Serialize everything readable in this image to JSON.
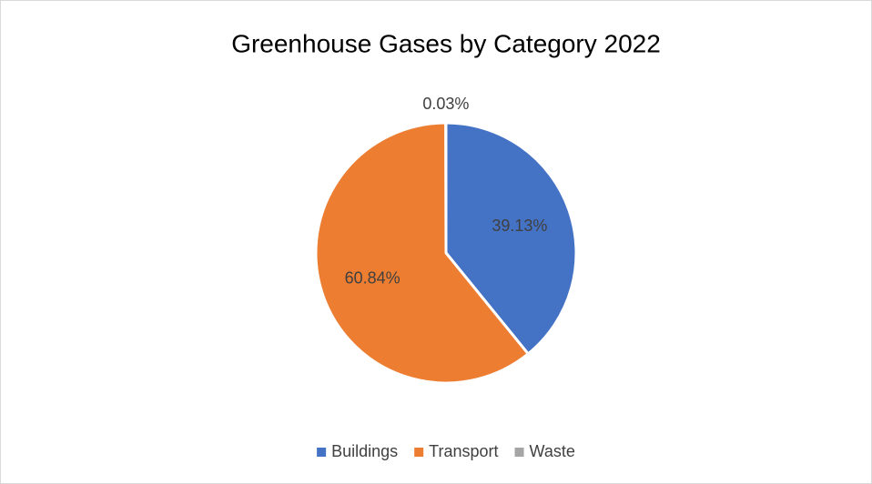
{
  "chart_data": {
    "type": "pie",
    "title": "Greenhouse Gases by Category 2022",
    "categories": [
      "Buildings",
      "Transport",
      "Waste"
    ],
    "values": [
      39.13,
      60.84,
      0.03
    ],
    "value_labels": [
      "39.13%",
      "60.84%",
      "0.03%"
    ],
    "colors": [
      "#4472c4",
      "#ed7d31",
      "#a5a5a5"
    ],
    "legend": "bottom"
  }
}
